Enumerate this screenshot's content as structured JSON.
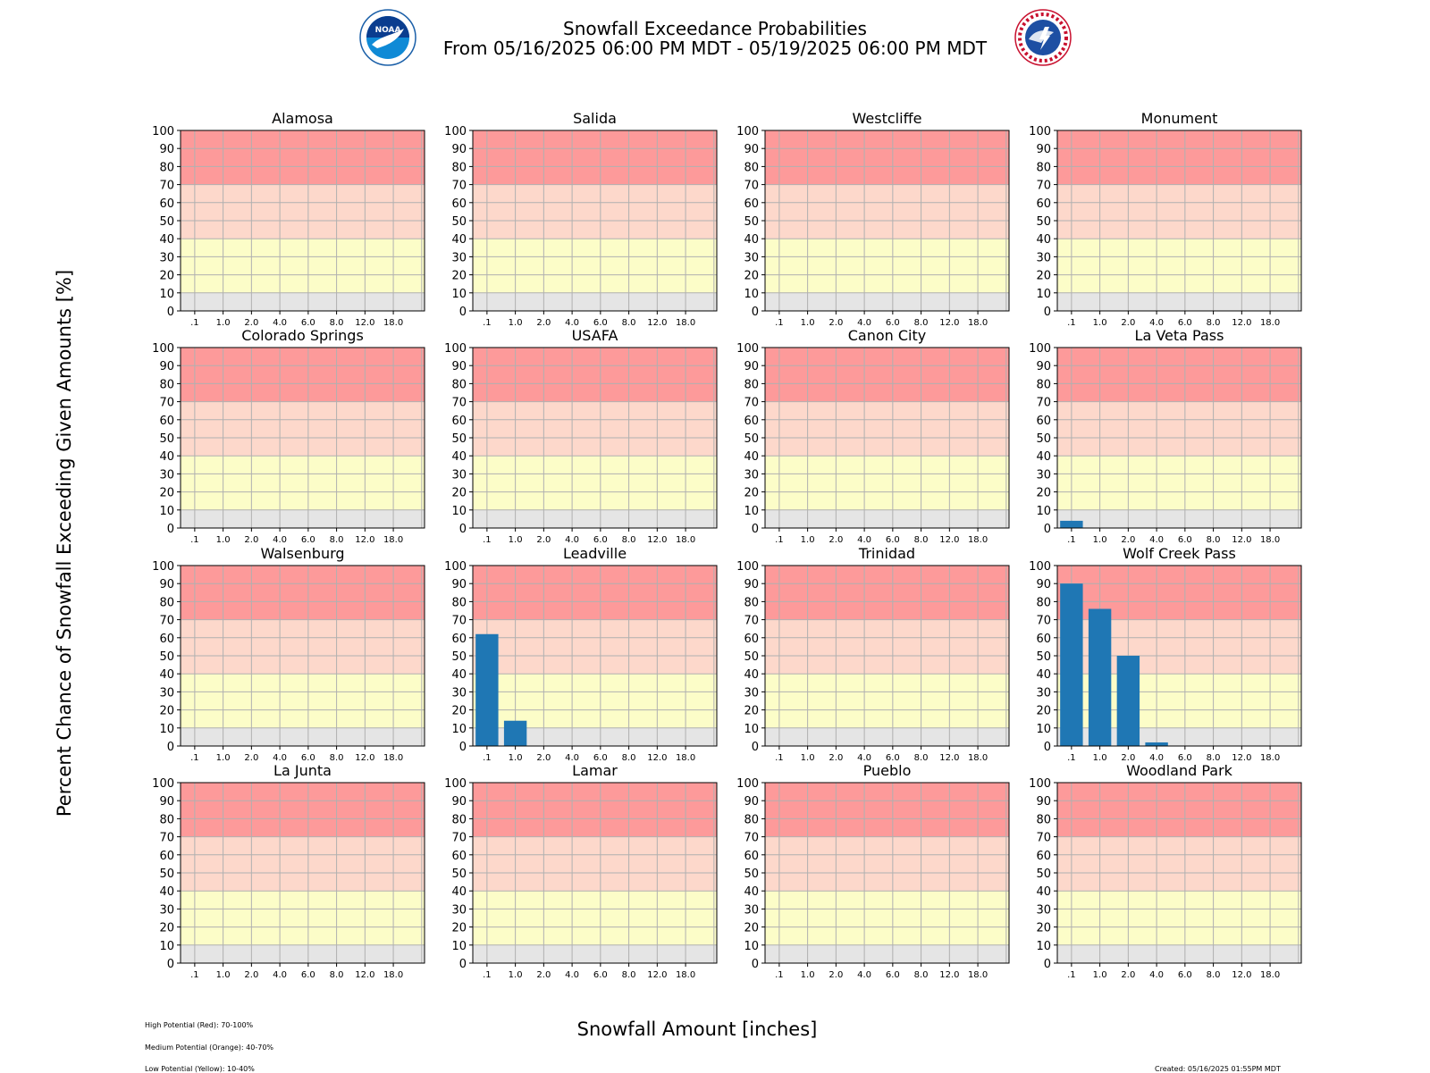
{
  "header": {
    "title_line1": "Snowfall Exceedance Probabilities",
    "title_line2": "From 05/16/2025 06:00 PM MDT - 05/19/2025 06:00 PM MDT"
  },
  "logos": {
    "noaa": {
      "name": "noaa-logo",
      "text": "NOAA"
    },
    "nws": {
      "name": "nws-logo",
      "text": "NATIONAL WEATHER SERVICE"
    }
  },
  "ylabel": "Percent Chance of Snowfall Exceeding Given Amounts [%]",
  "xlabel": "Snowfall Amount [inches]",
  "legend": {
    "high": "High Potential (Red): 70-100%",
    "medium": "Medium Potential (Orange): 40-70%",
    "low": "Low Potential (Yellow): 10-40%"
  },
  "created": "Created: 05/16/2025 01:55PM MDT",
  "colors": {
    "high": "#fd9a9a",
    "medium": "#fdd8cb",
    "low": "#fcfdc8",
    "minimal": "#e5e5e5",
    "bar": "#1f77b4",
    "grid": "#b0b0b0"
  },
  "chart_data": {
    "type": "bar",
    "categories": [
      ".1",
      "1.0",
      "2.0",
      "4.0",
      "6.0",
      "8.0",
      "12.0",
      "18.0"
    ],
    "ylim": [
      0,
      100
    ],
    "yticks": [
      0,
      10,
      20,
      30,
      40,
      50,
      60,
      70,
      80,
      90,
      100
    ],
    "grid": true,
    "bands": [
      {
        "from": 70,
        "to": 100,
        "color": "#fd9a9a"
      },
      {
        "from": 40,
        "to": 70,
        "color": "#fdd8cb"
      },
      {
        "from": 10,
        "to": 40,
        "color": "#fcfdc8"
      },
      {
        "from": 0,
        "to": 10,
        "color": "#e5e5e5"
      }
    ],
    "panels": [
      {
        "title": "Alamosa",
        "values": [
          0,
          0,
          0,
          0,
          0,
          0,
          0,
          0
        ]
      },
      {
        "title": "Salida",
        "values": [
          0,
          0,
          0,
          0,
          0,
          0,
          0,
          0
        ]
      },
      {
        "title": "Westcliffe",
        "values": [
          0,
          0,
          0,
          0,
          0,
          0,
          0,
          0
        ]
      },
      {
        "title": "Monument",
        "values": [
          0,
          0,
          0,
          0,
          0,
          0,
          0,
          0
        ]
      },
      {
        "title": "Colorado Springs",
        "values": [
          0,
          0,
          0,
          0,
          0,
          0,
          0,
          0
        ]
      },
      {
        "title": "USAFA",
        "values": [
          0,
          0,
          0,
          0,
          0,
          0,
          0,
          0
        ]
      },
      {
        "title": "Canon City",
        "values": [
          0,
          0,
          0,
          0,
          0,
          0,
          0,
          0
        ]
      },
      {
        "title": "La Veta Pass",
        "values": [
          4,
          0,
          0,
          0,
          0,
          0,
          0,
          0
        ]
      },
      {
        "title": "Walsenburg",
        "values": [
          0,
          0,
          0,
          0,
          0,
          0,
          0,
          0
        ]
      },
      {
        "title": "Leadville",
        "values": [
          62,
          14,
          0,
          0,
          0,
          0,
          0,
          0
        ]
      },
      {
        "title": "Trinidad",
        "values": [
          0,
          0,
          0,
          0,
          0,
          0,
          0,
          0
        ]
      },
      {
        "title": "Wolf Creek Pass",
        "values": [
          90,
          76,
          50,
          2,
          0,
          0,
          0,
          0
        ]
      },
      {
        "title": "La Junta",
        "values": [
          0,
          0,
          0,
          0,
          0,
          0,
          0,
          0
        ]
      },
      {
        "title": "Lamar",
        "values": [
          0,
          0,
          0,
          0,
          0,
          0,
          0,
          0
        ]
      },
      {
        "title": "Pueblo",
        "values": [
          0,
          0,
          0,
          0,
          0,
          0,
          0,
          0
        ]
      },
      {
        "title": "Woodland Park",
        "values": [
          0,
          0,
          0,
          0,
          0,
          0,
          0,
          0
        ]
      }
    ]
  }
}
